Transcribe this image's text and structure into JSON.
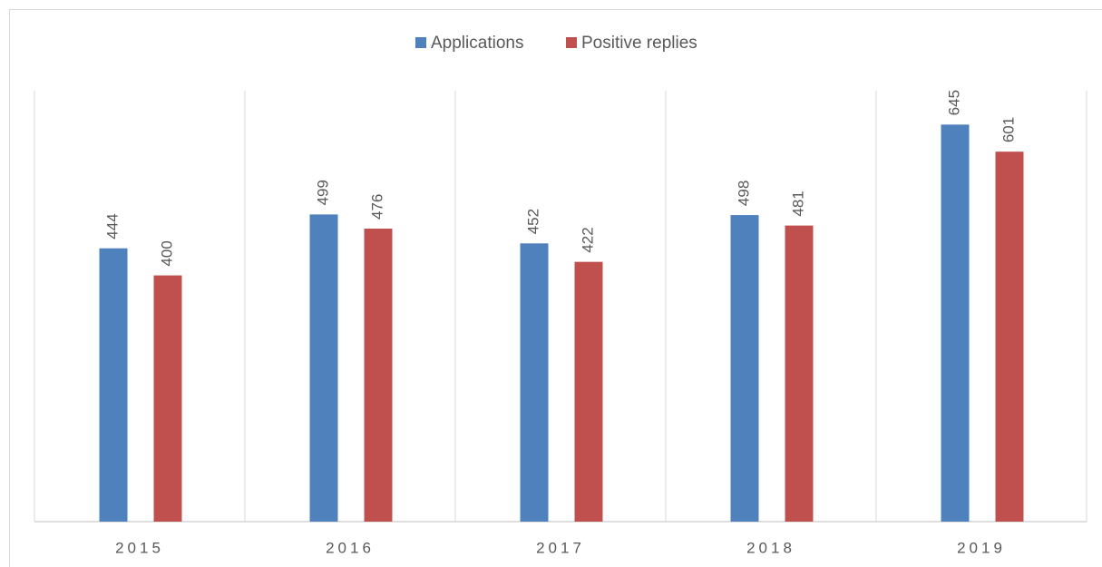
{
  "chart_data": {
    "type": "bar",
    "categories": [
      "2015",
      "2016",
      "2017",
      "2018",
      "2019"
    ],
    "series": [
      {
        "name": "Applications",
        "color": "#4f81bd",
        "values": [
          444,
          499,
          452,
          498,
          645
        ]
      },
      {
        "name": "Positive replies",
        "color": "#c0504d",
        "values": [
          400,
          476,
          422,
          481,
          601
        ]
      }
    ],
    "ylim": [
      0,
      700
    ],
    "legend": "top",
    "data_labels": true
  }
}
